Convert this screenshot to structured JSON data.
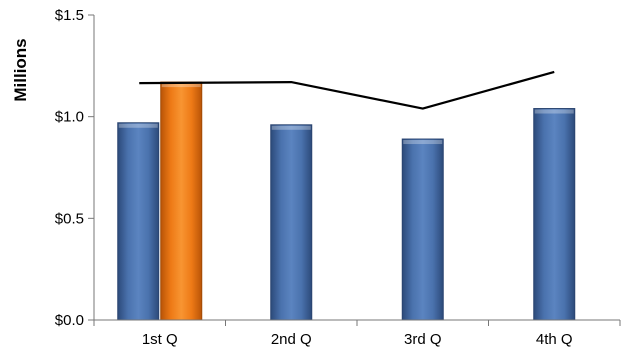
{
  "chart_data": {
    "type": "bar",
    "title": "",
    "xlabel": "",
    "ylabel": "Millions",
    "categories": [
      "1st Q",
      "2nd Q",
      "3rd Q",
      "4th Q"
    ],
    "ylim": [
      0,
      1.5
    ],
    "yticks": [
      0,
      0.5,
      1.0,
      1.5
    ],
    "ytick_labels": [
      "$0.0",
      "$0.5",
      "$1.0",
      "$1.5"
    ],
    "grid": false,
    "legend": "none",
    "series": [
      {
        "values": [
          0.97,
          0.96,
          0.89,
          1.04
        ],
        "type": "bar",
        "color": "#3d6199"
      },
      {
        "values": [
          1.17,
          null,
          null,
          null
        ],
        "type": "bar",
        "color": "#e8700e"
      },
      {
        "values": [
          1.165,
          1.17,
          1.04,
          1.22
        ],
        "type": "line",
        "color": "#000000"
      }
    ]
  }
}
